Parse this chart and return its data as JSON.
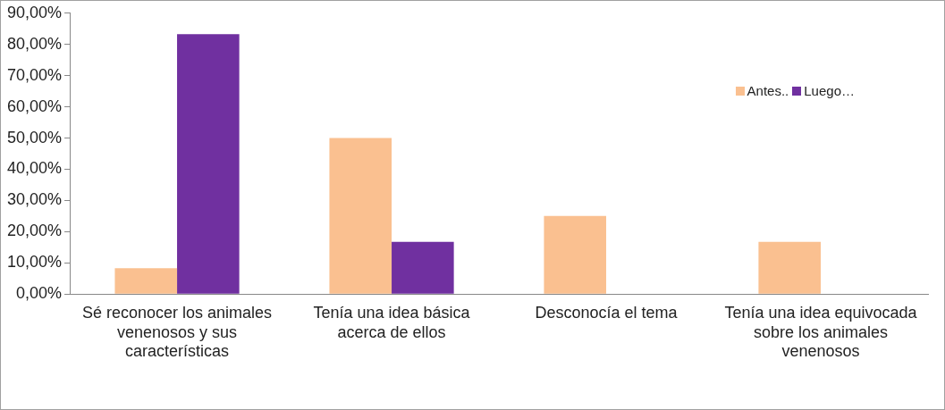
{
  "chart_data": {
    "type": "bar",
    "categories": [
      "Sé reconocer los animales venenosos y sus características",
      "Tenía una idea básica acerca de ellos",
      "Desconocía el tema",
      "Tenía una idea equivocada sobre los animales venenosos"
    ],
    "series": [
      {
        "name": "Antes..",
        "color": "#fac090",
        "values": [
          8.3,
          50,
          25,
          16.7
        ]
      },
      {
        "name": "Luego…",
        "color": "#7030a0",
        "values": [
          83.3,
          16.7,
          0,
          0
        ]
      }
    ],
    "ylim": [
      0,
      90
    ],
    "yticks": [
      {
        "value": 0,
        "label": "0,00%"
      },
      {
        "value": 10,
        "label": "10,00%"
      },
      {
        "value": 20,
        "label": "20,00%"
      },
      {
        "value": 30,
        "label": "30,00%"
      },
      {
        "value": 40,
        "label": "40,00%"
      },
      {
        "value": 50,
        "label": "50,00%"
      },
      {
        "value": 60,
        "label": "60,00%"
      },
      {
        "value": 70,
        "label": "70,00%"
      },
      {
        "value": 80,
        "label": "80,00%"
      },
      {
        "value": 90,
        "label": "90,00%"
      }
    ],
    "grid": false,
    "legend": "top right"
  }
}
